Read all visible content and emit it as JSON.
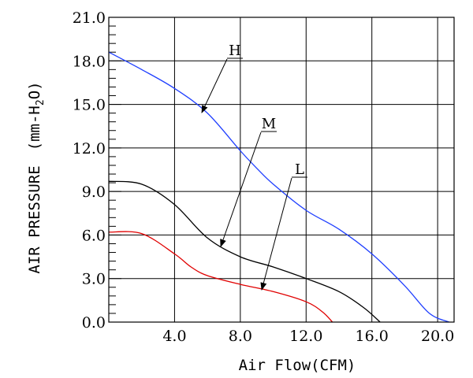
{
  "chart_data": {
    "type": "line",
    "xlabel": "Air Flow(CFM)",
    "ylabel": "AIR PRESSURE (mm-H2O)",
    "ylabel_parts": {
      "prefix": "AIR PRESSURE　(mm-H",
      "sub": "2",
      "suffix": "O)"
    },
    "xlim": [
      0,
      21.0
    ],
    "ylim": [
      0,
      21.0
    ],
    "x_ticks": [
      4.0,
      8.0,
      12.0,
      16.0,
      20.0
    ],
    "x_tick_labels": [
      "4.0",
      "8.0",
      "12.0",
      "16.0",
      "20.0"
    ],
    "y_ticks": [
      0,
      3.0,
      6.0,
      9.0,
      12.0,
      15.0,
      18.0,
      21.0
    ],
    "y_tick_labels": [
      "0.0",
      "3.0",
      "6.0",
      "9.0",
      "12.0",
      "15.0",
      "18.0",
      "21.0"
    ],
    "grid": true,
    "series": [
      {
        "name": "H",
        "color": "#1f3fff",
        "points": [
          [
            0,
            18.6
          ],
          [
            2.0,
            17.4
          ],
          [
            4.0,
            16.1
          ],
          [
            6.0,
            14.4
          ],
          [
            8.0,
            11.8
          ],
          [
            9.0,
            10.6
          ],
          [
            10.0,
            9.5
          ],
          [
            12.0,
            7.7
          ],
          [
            14.0,
            6.4
          ],
          [
            16.0,
            4.7
          ],
          [
            18.0,
            2.5
          ],
          [
            19.5,
            0.6
          ],
          [
            20.7,
            0
          ]
        ]
      },
      {
        "name": "M",
        "color": "#000000",
        "points": [
          [
            0,
            9.7
          ],
          [
            2.0,
            9.5
          ],
          [
            4.0,
            8.1
          ],
          [
            6.0,
            5.8
          ],
          [
            8.0,
            4.5
          ],
          [
            10.0,
            3.8
          ],
          [
            12.0,
            3.0
          ],
          [
            14.0,
            2.1
          ],
          [
            15.5,
            1.0
          ],
          [
            16.5,
            0
          ]
        ]
      },
      {
        "name": "L",
        "color": "#e00000",
        "points": [
          [
            0,
            6.2
          ],
          [
            2.0,
            6.1
          ],
          [
            4.0,
            4.7
          ],
          [
            5.0,
            3.8
          ],
          [
            6.0,
            3.2
          ],
          [
            8.0,
            2.6
          ],
          [
            10.0,
            2.1
          ],
          [
            12.0,
            1.4
          ],
          [
            13.0,
            0.7
          ],
          [
            13.6,
            0
          ]
        ]
      }
    ]
  }
}
